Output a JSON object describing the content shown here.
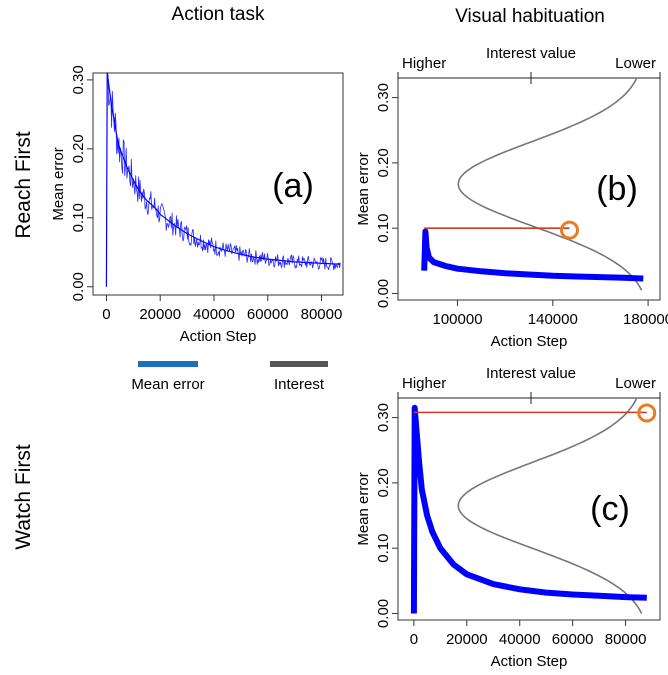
{
  "headers": {
    "action_task": "Action task",
    "visual_habituation": "Visual habituation"
  },
  "rows": {
    "reach_first": "Reach First",
    "watch_first": "Watch First"
  },
  "legend": {
    "mean_error": "Mean error",
    "interest": "Interest",
    "colors": {
      "mean_error": "#1a6fc2",
      "interest": "#555555"
    }
  },
  "colors": {
    "error_line": "#0000ff",
    "interest_curve": "#777777",
    "threshold_line": "#d03a2a",
    "marker": "#e67e22"
  },
  "chart_data": [
    {
      "id": "a",
      "type": "line",
      "panel_label": "(a)",
      "title": "",
      "xlabel": "Action Step",
      "ylabel": "Mean error",
      "xlim": [
        -5000,
        88000
      ],
      "ylim": [
        -0.012,
        0.31
      ],
      "xticks": [
        0,
        20000,
        40000,
        60000,
        80000
      ],
      "yticks": [
        "0.00",
        "0.10",
        "0.20",
        "0.30"
      ],
      "series": [
        {
          "x": [
            0,
            300,
            1000,
            2000,
            3000,
            4000,
            5000,
            6000,
            8000,
            10000,
            12000,
            15000,
            18000,
            20000,
            25000,
            30000,
            35000,
            40000,
            45000,
            50000,
            55000,
            60000,
            65000,
            70000,
            75000,
            80000,
            85000,
            87000
          ],
          "y": [
            0.0,
            0.31,
            0.29,
            0.26,
            0.24,
            0.215,
            0.2,
            0.19,
            0.17,
            0.155,
            0.14,
            0.125,
            0.115,
            0.105,
            0.09,
            0.077,
            0.067,
            0.058,
            0.052,
            0.047,
            0.043,
            0.04,
            0.038,
            0.036,
            0.035,
            0.034,
            0.033,
            0.033
          ]
        }
      ],
      "grid": false
    },
    {
      "id": "b",
      "type": "line",
      "panel_label": "(b)",
      "title": "",
      "top_axis": {
        "label": "Interest value",
        "left": "Higher",
        "right": "Lower"
      },
      "xlabel": "Action Step",
      "ylabel": "Mean error",
      "xlim": [
        75000,
        185000
      ],
      "ylim": [
        -0.01,
        0.33
      ],
      "xticks": [
        100000,
        140000,
        180000
      ],
      "yticks": [
        "0.00",
        "0.10",
        "0.20",
        "0.30"
      ],
      "series": [
        {
          "x": [
            86000,
            86500,
            87000,
            88000,
            90000,
            95000,
            100000,
            110000,
            120000,
            130000,
            140000,
            150000,
            160000,
            170000,
            178000
          ],
          "y": [
            0.035,
            0.095,
            0.07,
            0.055,
            0.048,
            0.042,
            0.038,
            0.034,
            0.031,
            0.029,
            0.027,
            0.026,
            0.025,
            0.024,
            0.023
          ]
        }
      ],
      "threshold": {
        "y": 0.1,
        "x_from": 86000,
        "x_to": 147000
      },
      "marker": {
        "x": 147000,
        "y": 0.097
      },
      "interest_range": [
        0.005,
        0.33
      ],
      "grid": false
    },
    {
      "id": "c",
      "type": "line",
      "panel_label": "(c)",
      "title": "",
      "top_axis": {
        "label": "Interest value",
        "left": "Higher",
        "right": "Lower"
      },
      "xlabel": "Action Step",
      "ylabel": "Mean error",
      "xlim": [
        -6000,
        93000
      ],
      "ylim": [
        -0.01,
        0.33
      ],
      "xticks": [
        0,
        20000,
        40000,
        60000,
        80000
      ],
      "yticks": [
        "0.00",
        "0.10",
        "0.20",
        "0.30"
      ],
      "series": [
        {
          "x": [
            0,
            300,
            1000,
            2000,
            3000,
            5000,
            7000,
            10000,
            15000,
            20000,
            30000,
            40000,
            50000,
            60000,
            70000,
            80000,
            88000
          ],
          "y": [
            0.0,
            0.315,
            0.28,
            0.23,
            0.19,
            0.15,
            0.125,
            0.1,
            0.075,
            0.06,
            0.045,
            0.037,
            0.032,
            0.029,
            0.027,
            0.025,
            0.024
          ]
        }
      ],
      "threshold": {
        "y": 0.308,
        "x_from": 0,
        "x_to": 88000
      },
      "marker": {
        "x": 88000,
        "y": 0.307
      },
      "interest_range": [
        0.0,
        0.33
      ],
      "grid": false
    }
  ]
}
